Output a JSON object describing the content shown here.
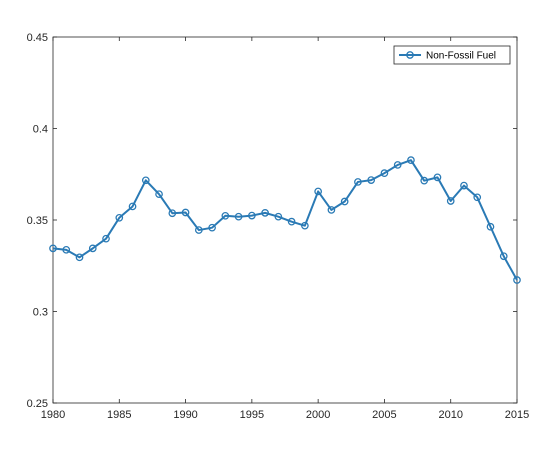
{
  "chart_data": {
    "type": "line",
    "title": "",
    "xlabel": "",
    "ylabel": "",
    "xlim": [
      1980,
      2015
    ],
    "ylim": [
      0.25,
      0.45
    ],
    "x_ticks": [
      1980,
      1985,
      1990,
      1995,
      2000,
      2005,
      2010,
      2015
    ],
    "y_ticks": [
      0.25,
      0.3,
      0.35,
      0.4,
      0.45
    ],
    "x_tick_labels": [
      "1980",
      "1985",
      "1990",
      "1995",
      "2000",
      "2005",
      "2010",
      "2015"
    ],
    "y_tick_labels": [
      "0.25",
      "0.3",
      "0.35",
      "0.4",
      "0.45"
    ],
    "grid": false,
    "legend_position": "top-right",
    "series": [
      {
        "name": "Non-Fossil Fuel",
        "color": "#2a7ab5",
        "marker": "circle",
        "x": [
          1980,
          1981,
          1982,
          1983,
          1984,
          1985,
          1986,
          1987,
          1988,
          1989,
          1990,
          1991,
          1992,
          1993,
          1994,
          1995,
          1996,
          1997,
          1998,
          1999,
          2000,
          2001,
          2002,
          2003,
          2004,
          2005,
          2006,
          2007,
          2008,
          2009,
          2010,
          2011,
          2012,
          2013,
          2014,
          2015
        ],
        "values": [
          0.3345,
          0.3337,
          0.3296,
          0.3345,
          0.3398,
          0.3512,
          0.3574,
          0.3717,
          0.3641,
          0.3537,
          0.3541,
          0.3445,
          0.3458,
          0.3523,
          0.3518,
          0.3524,
          0.3539,
          0.3518,
          0.3491,
          0.3469,
          0.3656,
          0.3555,
          0.3601,
          0.3708,
          0.3718,
          0.3756,
          0.3801,
          0.3827,
          0.3715,
          0.3733,
          0.3604,
          0.3688,
          0.3624,
          0.3463,
          0.3302,
          0.3172
        ]
      }
    ]
  }
}
